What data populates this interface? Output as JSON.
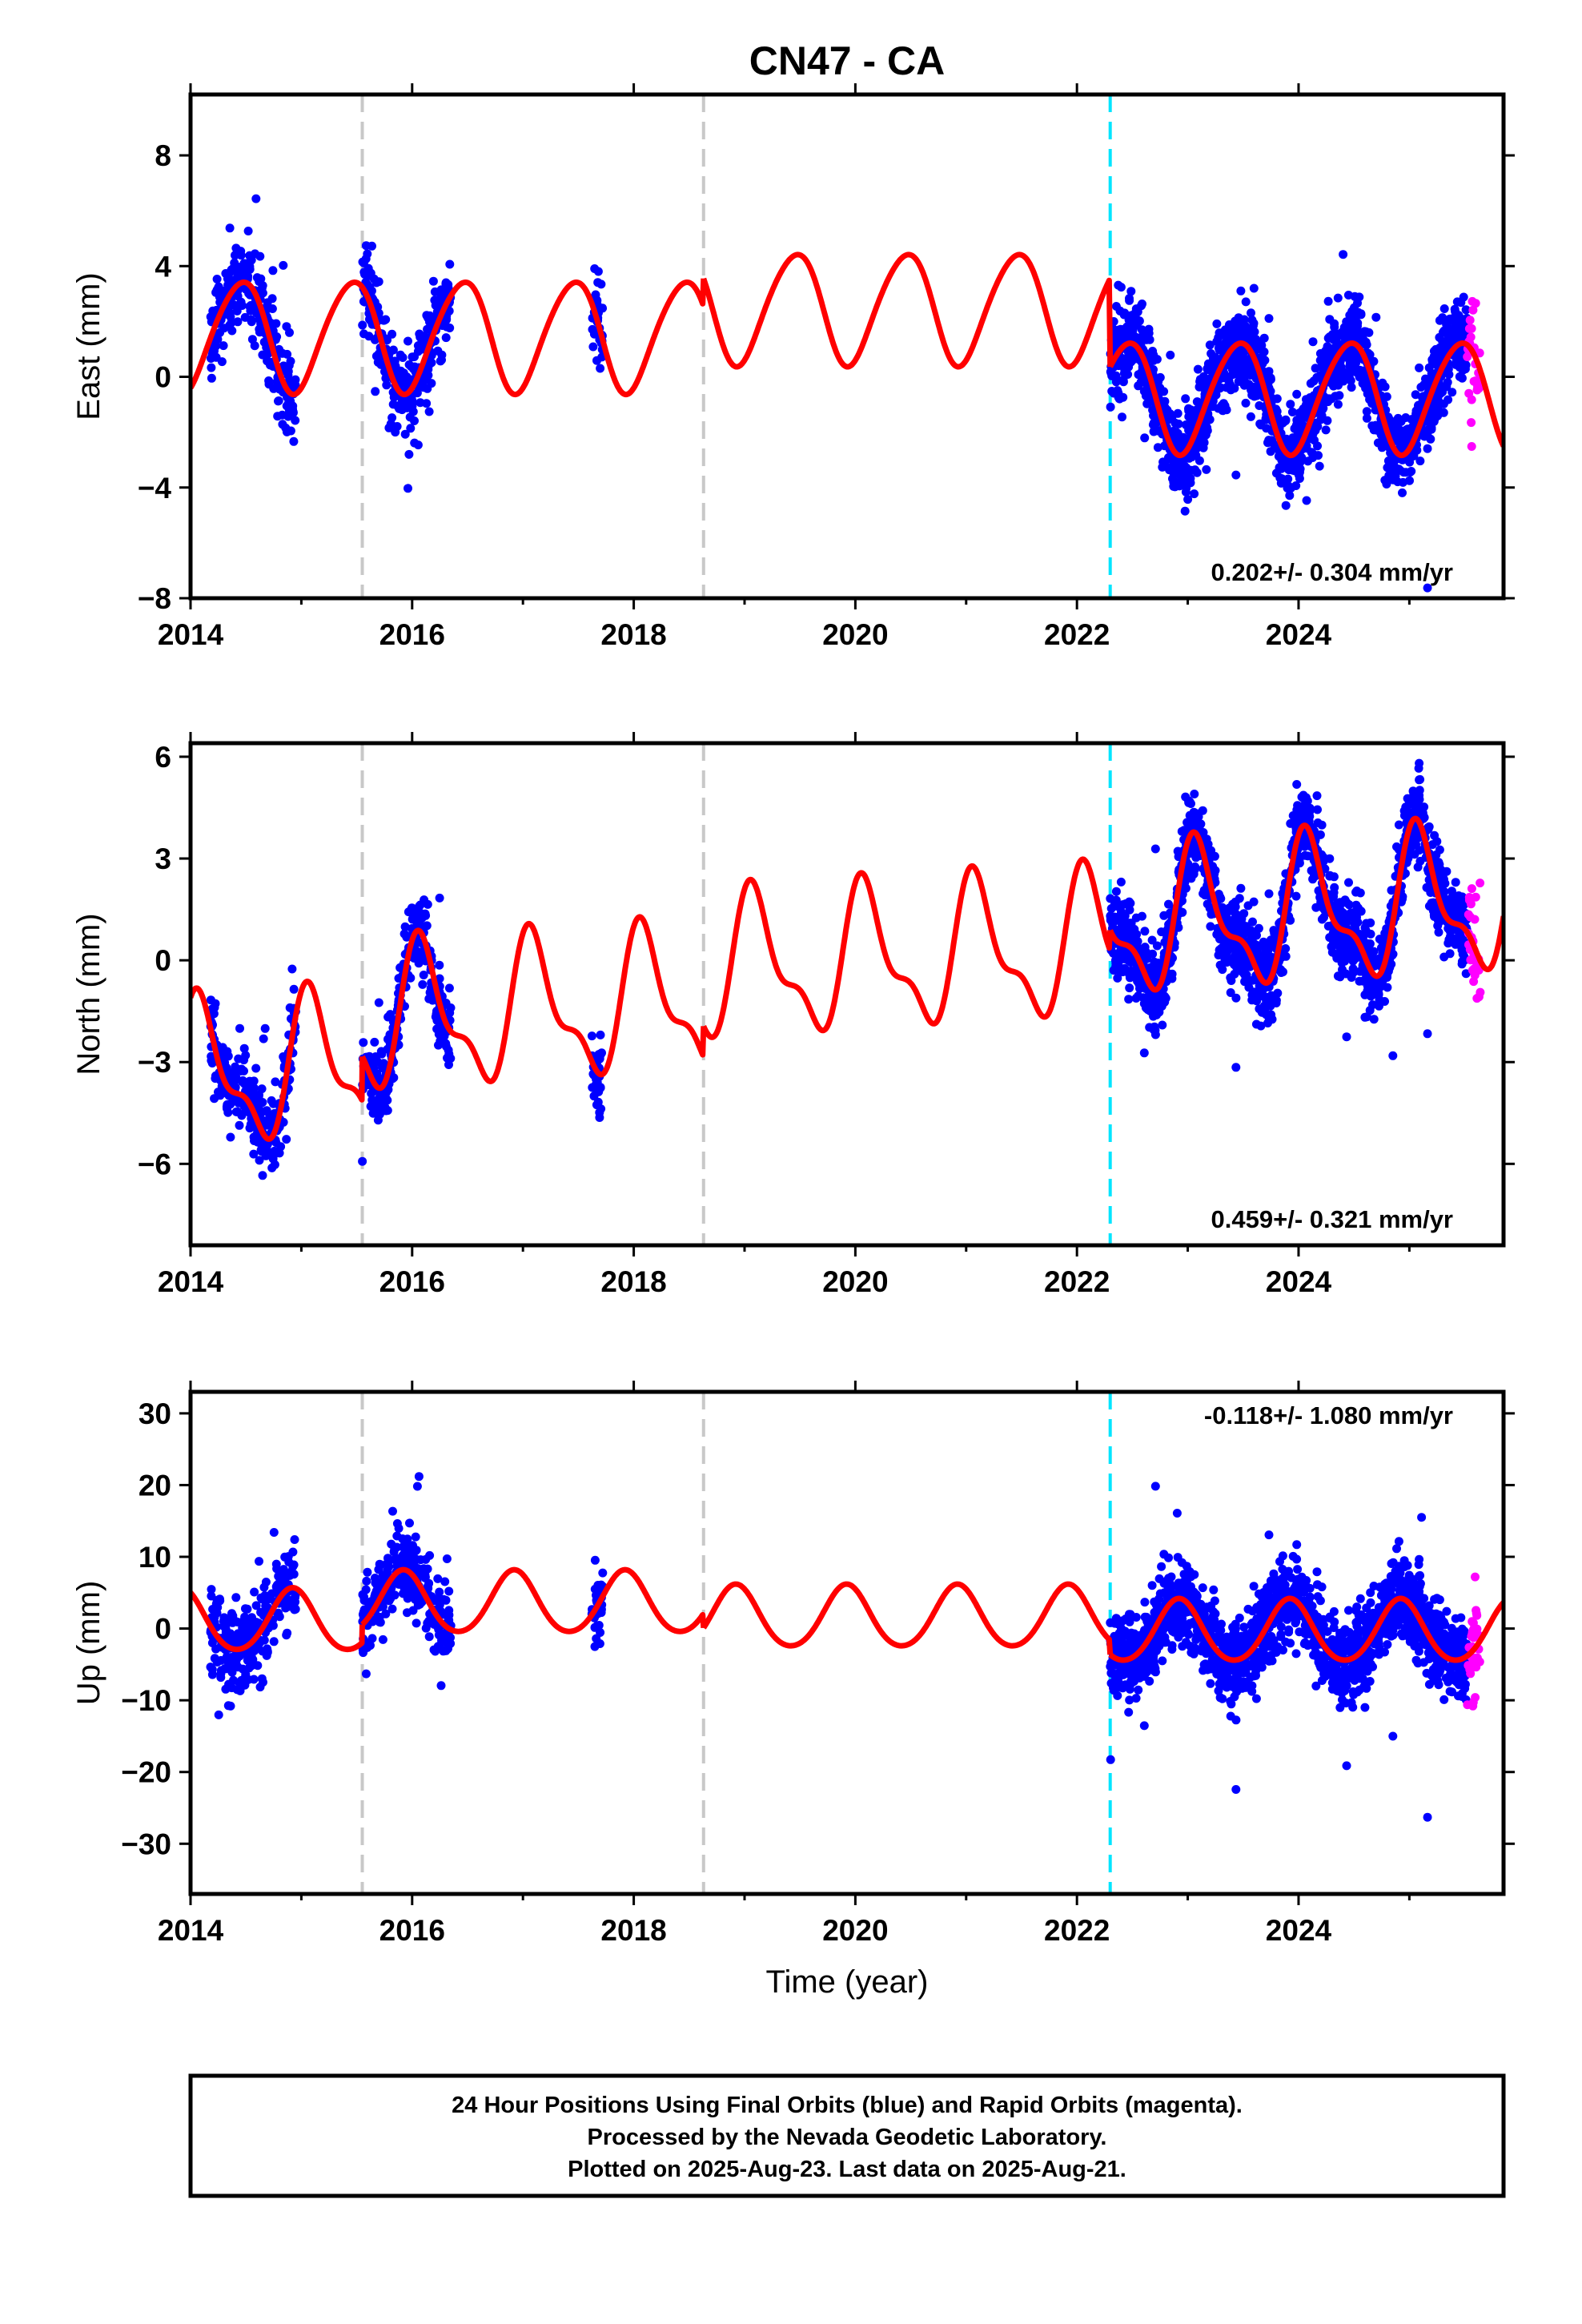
{
  "title": "CN47 - CA",
  "xlabel": "Time (year)",
  "colors": {
    "final": "#0000ff",
    "rapid": "#ff00ff",
    "model": "#ff0000",
    "offset_equipment": "#c8c8c8",
    "offset_earthquake": "#00e5ff"
  },
  "x_range": [
    2014,
    2025.85
  ],
  "x_ticks": [
    "2014",
    "2016",
    "2018",
    "2020",
    "2022",
    "2024"
  ],
  "offsets_equipment": [
    2015.55,
    2018.63
  ],
  "offsets_earthquake": [
    2022.3
  ],
  "footer": [
    "24 Hour Positions Using Final Orbits (blue) and Rapid Orbits (magenta).",
    "Processed by the Nevada Geodetic Laboratory.",
    "Plotted on 2025-Aug-23. Last data on 2025-Aug-21."
  ],
  "chart_data": [
    {
      "type": "scatter",
      "component": "east",
      "ylabel": "East (mm)",
      "ylim": [
        -8,
        10.2
      ],
      "yticks": [
        "−8",
        "−4",
        "0",
        "4",
        "8"
      ],
      "ytick_values": [
        -8,
        -4,
        0,
        4,
        8
      ],
      "rate": "0.202+/- 0.304 mm/yr",
      "rate_position": "bottom-right",
      "model": {
        "amp1": 2.0,
        "ph1": 0.2,
        "amp2": 0.2,
        "ph2": 1.0,
        "seg_mean": [
          1.5,
          1.5,
          2.5,
          -0.7
        ],
        "slope": 0
      }
    },
    {
      "type": "scatter",
      "component": "north",
      "ylabel": "North (mm)",
      "ylim": [
        -8.4,
        6.4
      ],
      "yticks": [
        "−6",
        "−3",
        "0",
        "3",
        "6"
      ],
      "ytick_values": [
        -6,
        -3,
        0,
        3,
        6
      ],
      "rate": "0.459+/- 0.321 mm/yr",
      "rate_position": "bottom-right",
      "model": {
        "amp1": 1.9,
        "ph1": 0.85,
        "amp2": 0.8,
        "ph2": 0.4,
        "seg_mean": [
          -2.2,
          -0.9,
          0.0,
          0.6
        ],
        "slope": 0.2
      }
    },
    {
      "type": "scatter",
      "component": "up",
      "ylabel": "Up (mm)",
      "ylim": [
        -37,
        33
      ],
      "yticks": [
        "−30",
        "−20",
        "−10",
        "0",
        "10",
        "20",
        "30"
      ],
      "ytick_values": [
        -30,
        -20,
        -10,
        0,
        10,
        20,
        30
      ],
      "rate": "-0.118+/- 1.080 mm/yr",
      "rate_position": "top-right",
      "model": {
        "amp1": 4.3,
        "ph1": 0.67,
        "amp2": 0.4,
        "ph2": 0.3,
        "seg_mean": [
          1.0,
          3.5,
          1.5,
          -0.5
        ],
        "slope": 0
      }
    }
  ]
}
